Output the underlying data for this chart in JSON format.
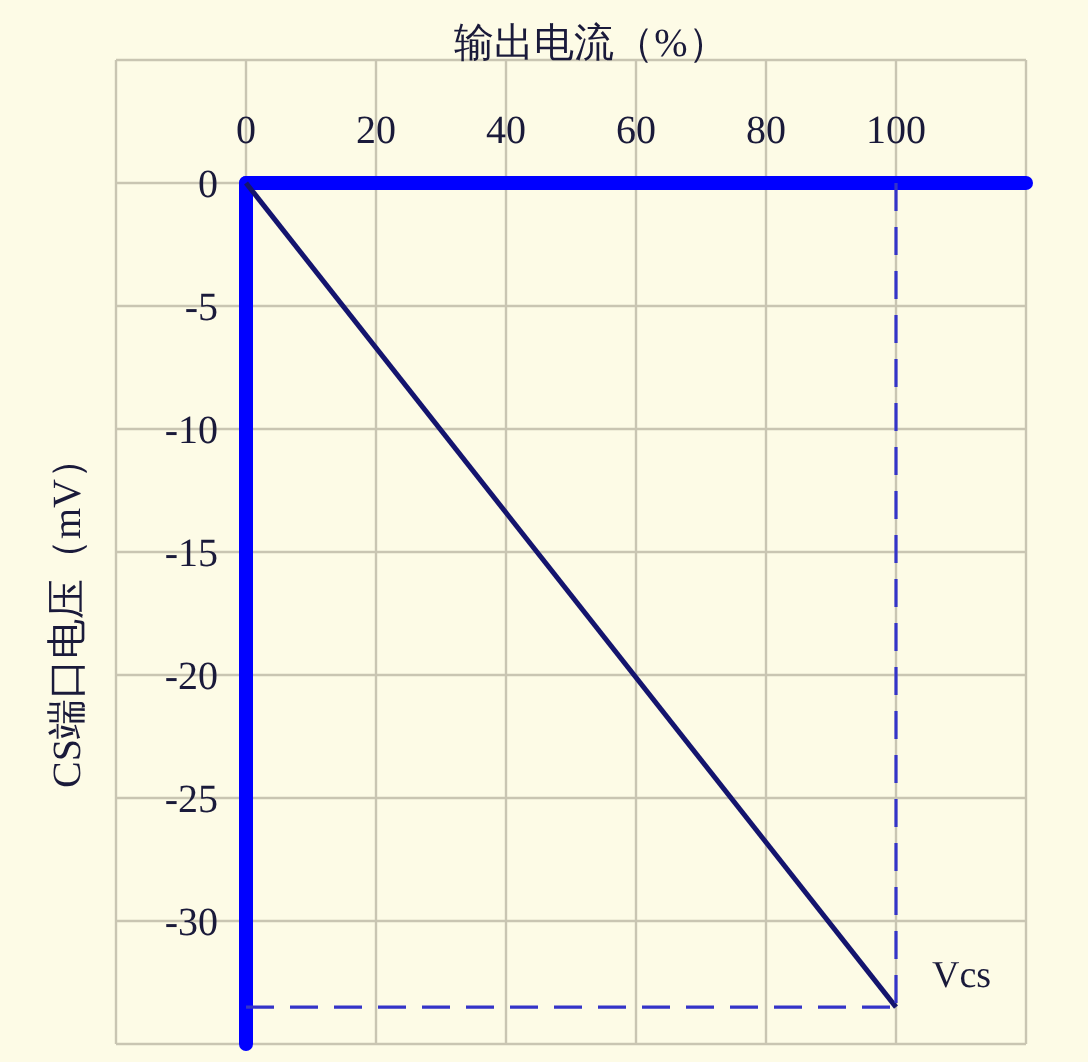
{
  "chart_data": {
    "type": "line",
    "xlabel": "输出电流（%）",
    "ylabel": "CS端口电压（mV）",
    "x": [
      0,
      100
    ],
    "series": [
      {
        "values": [
          0,
          -33.5
        ],
        "color": "#14146e"
      }
    ],
    "ref_lines": [
      {
        "axis": "x",
        "value": 100,
        "color": "#3434c8",
        "line_style": "dashed"
      },
      {
        "axis": "y",
        "value": -33.5,
        "color": "#3434c8",
        "line_style": "dashed"
      }
    ],
    "annotations": [
      {
        "text": "Vcs",
        "x": 100,
        "y": -33.5
      }
    ],
    "xlim": [
      -20,
      120
    ],
    "ylim": [
      -35,
      5
    ],
    "xticks": [
      {
        "value": -20,
        "label": null
      },
      0,
      20,
      40,
      60,
      80,
      100,
      {
        "value": 120,
        "label": null
      }
    ],
    "yticks": [
      {
        "value": 5,
        "label": null
      },
      0,
      -5,
      -10,
      -15,
      -20,
      -25,
      -30,
      {
        "value": -35,
        "label": null
      }
    ],
    "grid": true
  }
}
